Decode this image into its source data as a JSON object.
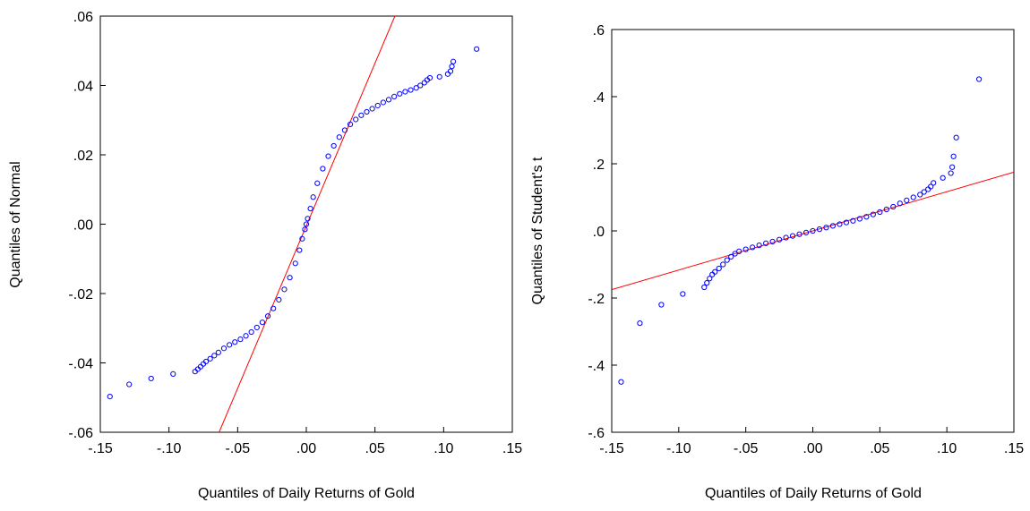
{
  "chart_data": [
    {
      "type": "scatter",
      "title": "",
      "xlabel": "Quantiles of Daily Returns of Gold",
      "ylabel": "Quantiles of Normal",
      "xlim": [
        -0.15,
        0.15
      ],
      "ylim": [
        -0.06,
        0.06
      ],
      "x_ticks": [
        -0.15,
        -0.1,
        -0.05,
        0.0,
        0.05,
        0.1,
        0.15
      ],
      "x_tick_labels": [
        "-.15",
        "-.10",
        "-.05",
        ".00",
        ".05",
        ".10",
        ".15"
      ],
      "y_ticks": [
        -0.06,
        -0.04,
        -0.02,
        0.0,
        0.02,
        0.04,
        0.06
      ],
      "y_tick_labels": [
        "-.06",
        "-.04",
        "-.02",
        ".00",
        ".02",
        ".04",
        ".06"
      ],
      "grid": false,
      "reference_line": {
        "color": "#ff0000",
        "points": [
          [
            -0.0635,
            -0.06
          ],
          [
            0.0645,
            0.06
          ]
        ]
      },
      "points_color": "#0000ff",
      "points": [
        [
          -0.143,
          -0.0497
        ],
        [
          -0.129,
          -0.0462
        ],
        [
          -0.113,
          -0.0445
        ],
        [
          -0.097,
          -0.0432
        ],
        [
          -0.081,
          -0.0425
        ],
        [
          -0.079,
          -0.0418
        ],
        [
          -0.077,
          -0.0411
        ],
        [
          -0.075,
          -0.0403
        ],
        [
          -0.073,
          -0.0396
        ],
        [
          -0.07,
          -0.0388
        ],
        [
          -0.067,
          -0.0379
        ],
        [
          -0.064,
          -0.037
        ],
        [
          -0.06,
          -0.0358
        ],
        [
          -0.056,
          -0.0348
        ],
        [
          -0.052,
          -0.034
        ],
        [
          -0.048,
          -0.0332
        ],
        [
          -0.044,
          -0.0322
        ],
        [
          -0.04,
          -0.0311
        ],
        [
          -0.036,
          -0.0298
        ],
        [
          -0.032,
          -0.0283
        ],
        [
          -0.028,
          -0.0265
        ],
        [
          -0.024,
          -0.0243
        ],
        [
          -0.02,
          -0.0218
        ],
        [
          -0.016,
          -0.0188
        ],
        [
          -0.012,
          -0.0154
        ],
        [
          -0.008,
          -0.0113
        ],
        [
          -0.005,
          -0.0075
        ],
        [
          -0.003,
          -0.0042
        ],
        [
          -0.001,
          -0.0015
        ],
        [
          0.0,
          0.0
        ],
        [
          0.001,
          0.0016
        ],
        [
          0.003,
          0.0045
        ],
        [
          0.005,
          0.0078
        ],
        [
          0.008,
          0.0118
        ],
        [
          0.012,
          0.016
        ],
        [
          0.016,
          0.0196
        ],
        [
          0.02,
          0.0226
        ],
        [
          0.024,
          0.0251
        ],
        [
          0.028,
          0.0271
        ],
        [
          0.032,
          0.0288
        ],
        [
          0.036,
          0.0302
        ],
        [
          0.04,
          0.0314
        ],
        [
          0.044,
          0.0324
        ],
        [
          0.048,
          0.0333
        ],
        [
          0.052,
          0.0342
        ],
        [
          0.056,
          0.0351
        ],
        [
          0.06,
          0.0359
        ],
        [
          0.064,
          0.0368
        ],
        [
          0.068,
          0.0376
        ],
        [
          0.072,
          0.0382
        ],
        [
          0.076,
          0.0387
        ],
        [
          0.08,
          0.0393
        ],
        [
          0.083,
          0.04
        ],
        [
          0.086,
          0.0408
        ],
        [
          0.088,
          0.0416
        ],
        [
          0.09,
          0.0422
        ],
        [
          0.097,
          0.0425
        ],
        [
          0.103,
          0.0433
        ],
        [
          0.105,
          0.0441
        ],
        [
          0.106,
          0.0455
        ],
        [
          0.107,
          0.0469
        ],
        [
          0.124,
          0.0505
        ]
      ]
    },
    {
      "type": "scatter",
      "title": "",
      "xlabel": "Quantiles of Daily Returns of Gold",
      "ylabel": "Quantiles of Student's t",
      "xlim": [
        -0.15,
        0.15
      ],
      "ylim": [
        -0.6,
        0.6
      ],
      "x_ticks": [
        -0.15,
        -0.1,
        -0.05,
        0.0,
        0.05,
        0.1,
        0.15
      ],
      "x_tick_labels": [
        "-.15",
        "-.10",
        "-.05",
        ".00",
        ".05",
        ".10",
        ".15"
      ],
      "y_ticks": [
        -0.6,
        -0.4,
        -0.2,
        0.0,
        0.2,
        0.4,
        0.6
      ],
      "y_tick_labels": [
        "-.6",
        "-.4",
        "-.2",
        ".0",
        ".2",
        ".4",
        ".6"
      ],
      "grid": false,
      "reference_line": {
        "color": "#ff0000",
        "points": [
          [
            -0.15,
            -0.175
          ],
          [
            0.15,
            0.175
          ]
        ]
      },
      "points_color": "#0000ff",
      "points": [
        [
          -0.143,
          -0.45
        ],
        [
          -0.129,
          -0.275
        ],
        [
          -0.113,
          -0.22
        ],
        [
          -0.097,
          -0.188
        ],
        [
          -0.081,
          -0.168
        ],
        [
          -0.079,
          -0.155
        ],
        [
          -0.077,
          -0.142
        ],
        [
          -0.075,
          -0.13
        ],
        [
          -0.073,
          -0.122
        ],
        [
          -0.07,
          -0.112
        ],
        [
          -0.067,
          -0.1
        ],
        [
          -0.064,
          -0.087
        ],
        [
          -0.061,
          -0.077
        ],
        [
          -0.058,
          -0.068
        ],
        [
          -0.055,
          -0.061
        ],
        [
          -0.05,
          -0.055
        ],
        [
          -0.045,
          -0.049
        ],
        [
          -0.04,
          -0.043
        ],
        [
          -0.035,
          -0.037
        ],
        [
          -0.03,
          -0.032
        ],
        [
          -0.025,
          -0.026
        ],
        [
          -0.02,
          -0.02
        ],
        [
          -0.015,
          -0.015
        ],
        [
          -0.01,
          -0.01
        ],
        [
          -0.005,
          -0.005
        ],
        [
          0.0,
          0.0
        ],
        [
          0.005,
          0.005
        ],
        [
          0.01,
          0.01
        ],
        [
          0.015,
          0.015
        ],
        [
          0.02,
          0.02
        ],
        [
          0.025,
          0.025
        ],
        [
          0.03,
          0.03
        ],
        [
          0.035,
          0.036
        ],
        [
          0.04,
          0.042
        ],
        [
          0.045,
          0.049
        ],
        [
          0.05,
          0.056
        ],
        [
          0.055,
          0.064
        ],
        [
          0.06,
          0.072
        ],
        [
          0.065,
          0.082
        ],
        [
          0.07,
          0.091
        ],
        [
          0.075,
          0.1
        ],
        [
          0.08,
          0.108
        ],
        [
          0.083,
          0.116
        ],
        [
          0.086,
          0.124
        ],
        [
          0.088,
          0.132
        ],
        [
          0.09,
          0.143
        ],
        [
          0.097,
          0.158
        ],
        [
          0.103,
          0.172
        ],
        [
          0.104,
          0.19
        ],
        [
          0.105,
          0.222
        ],
        [
          0.107,
          0.278
        ],
        [
          0.124,
          0.452
        ]
      ]
    }
  ]
}
